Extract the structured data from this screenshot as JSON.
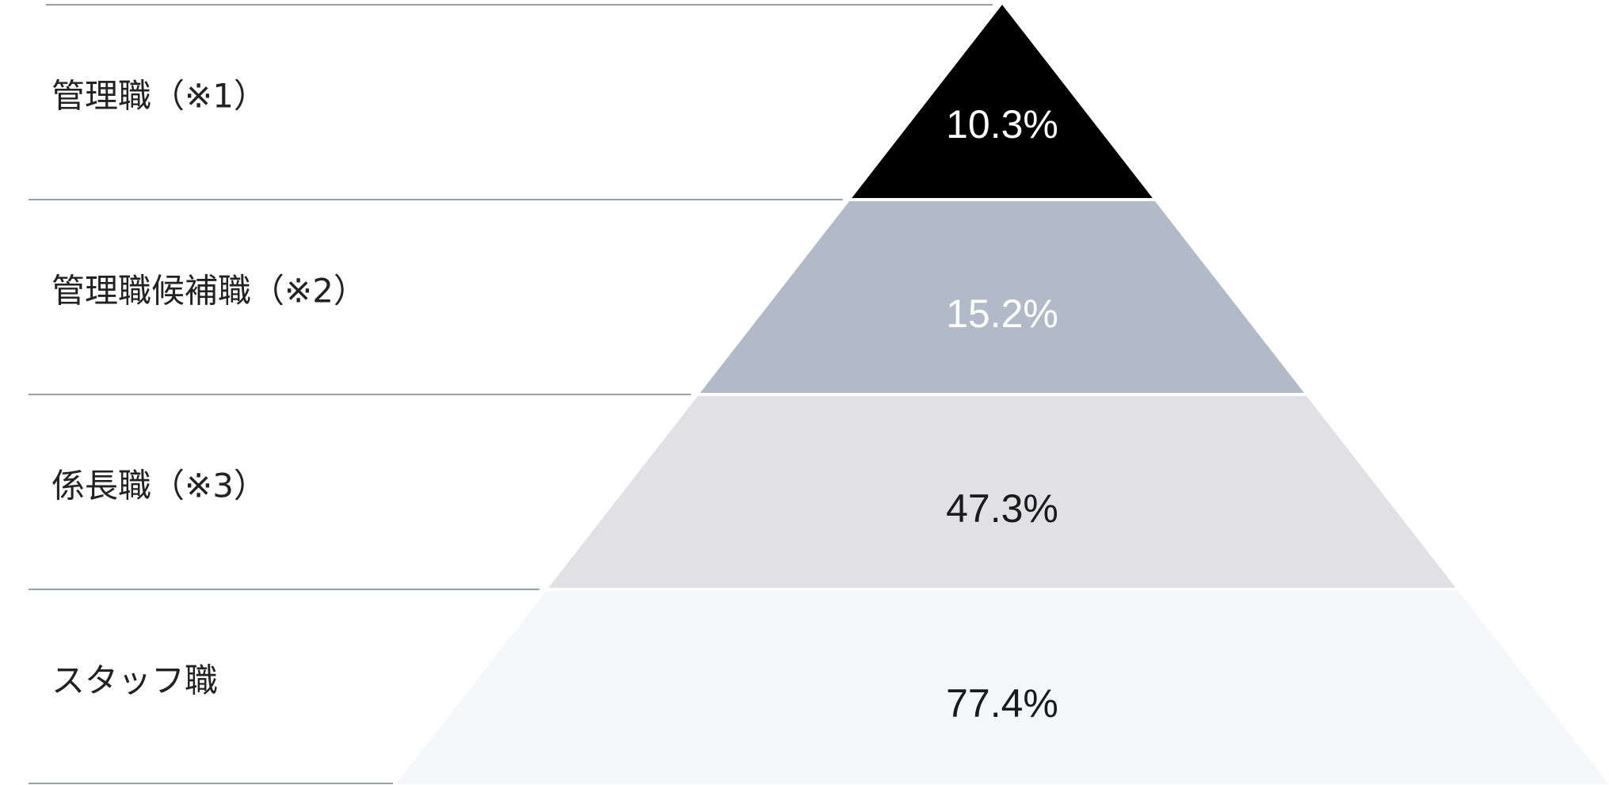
{
  "chart_data": {
    "type": "pyramid",
    "categories": [
      "管理職（※1）",
      "管理職候補職（※2）",
      "係長職（※3）",
      "スタッフ職"
    ],
    "values": [
      10.3,
      15.2,
      47.3,
      77.4
    ],
    "value_labels": [
      "10.3%",
      "15.2%",
      "47.3%",
      "77.4%"
    ],
    "colors": [
      "#000000",
      "#b3bac7",
      "#e1e1e5",
      "#f6f7fb"
    ],
    "label_colors": [
      "#ffffff",
      "#ffffff",
      "#1a1a1a",
      "#1a1a1a"
    ]
  }
}
